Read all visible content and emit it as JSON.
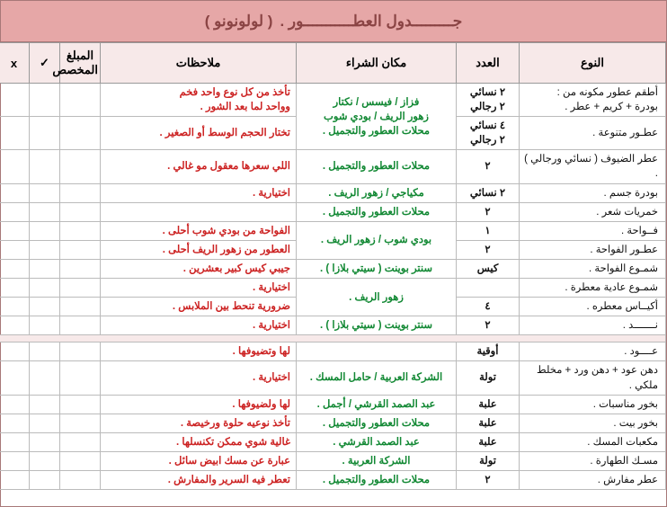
{
  "title": {
    "main": "جـــــــــدول العطـــــــــــور .",
    "sub": "( لولونونو )"
  },
  "headers": {
    "type": "النوع",
    "qty": "العدد",
    "place": "مكان الشراء",
    "notes": "ملاحظات",
    "amount": "المبلغ المخصص",
    "check": "✓",
    "x": "x"
  },
  "section1": [
    {
      "type": "أطقم عطور مكونه من :\nبودرة + كريم + عطر .",
      "qty": "٢ نسائي\n٢ رجالي",
      "place": "فزاز / فيسس / نكتار\nزهور الريف / بودي شوب\nمحلات العطور والتجميل .",
      "notes": "تأخذ من كل نوع واحد فخم\nوواحد لما بعد الشور ."
    },
    {
      "type": "عطـور متنوعة .",
      "qty": "٤ نسائي\n٢ رجالي",
      "place": "",
      "notes": "تختار الحجم الوسط أو الصغير ."
    },
    {
      "type": "عطر الضيوف ( نسائي ورجالي ) .",
      "qty": "٢",
      "place": "محلات العطور والتجميل .",
      "notes": "اللي سعرها معقول مو غالي ."
    },
    {
      "type": "بودرة جسم .",
      "qty": "٢ نسائي",
      "place": "مكياجي / زهور الريف .",
      "notes": "اختيارية ."
    },
    {
      "type": "خمريات شعر .",
      "qty": "٢",
      "place": "محلات العطور والتجميل .",
      "notes": ""
    },
    {
      "type": "فــواحة .",
      "qty": "١",
      "place": "بودي شوب / زهور الريف .",
      "notes": "الفواحة من بودي شوب أحلى ."
    },
    {
      "type": "عطـور الفواحة .",
      "qty": "٢",
      "place": "",
      "notes": "العطور من زهور الريف أحلى ."
    },
    {
      "type": "شمـوع الفواحة .",
      "qty": "كيس",
      "place": "سنتر بوينت ( سيتي بلازا ) .",
      "notes": "جيبي كيس كبير بعشرين ."
    },
    {
      "type": "شمـوع عادية معطرة .",
      "qty": "",
      "place": "زهور الريف .",
      "notes": "اختيارية ."
    },
    {
      "type": "أكيــاس معطره .",
      "qty": "٤",
      "place": "",
      "notes": "ضرورية تنحط بين الملابس ."
    },
    {
      "type": "نـــــــد .",
      "qty": "٢",
      "place": "سنتر بوينت ( سيتي بلازا ) .",
      "notes": "اختيارية ."
    }
  ],
  "section2": [
    {
      "type": "عــــود .",
      "qty": "أوقية",
      "place": "",
      "notes": "لها وتضيوفها ."
    },
    {
      "type": "دهن عود + دهن ورد + مخلط ملكي .",
      "qty": "تولة",
      "place": "الشركة العربية / حامل المسك .",
      "notes": "اختيارية ."
    },
    {
      "type": "بخور مناسبات .",
      "qty": "علبة",
      "place": "عبد الصمد القرشي / أجمل .",
      "notes": "لها ولضيوفها ."
    },
    {
      "type": "بخور بيت .",
      "qty": "علبة",
      "place": "محلات العطور والتجميل .",
      "notes": "تأخذ نوعيه حلوة ورخيصة ."
    },
    {
      "type": "مكعبات المسك .",
      "qty": "علبة",
      "place": "عبد الصمد القرشي .",
      "notes": "غالية شوي ممكن تكنسلها ."
    },
    {
      "type": "مسـك الطهارة .",
      "qty": "تولة",
      "place": "الشركة العربية .",
      "notes": "عبارة عن مسك ابيض سائل ."
    },
    {
      "type": "عطر مفارش .",
      "qty": "٢",
      "place": "محلات العطور والتجميل .",
      "notes": "تعطر فيه السرير والمفارش ."
    }
  ]
}
